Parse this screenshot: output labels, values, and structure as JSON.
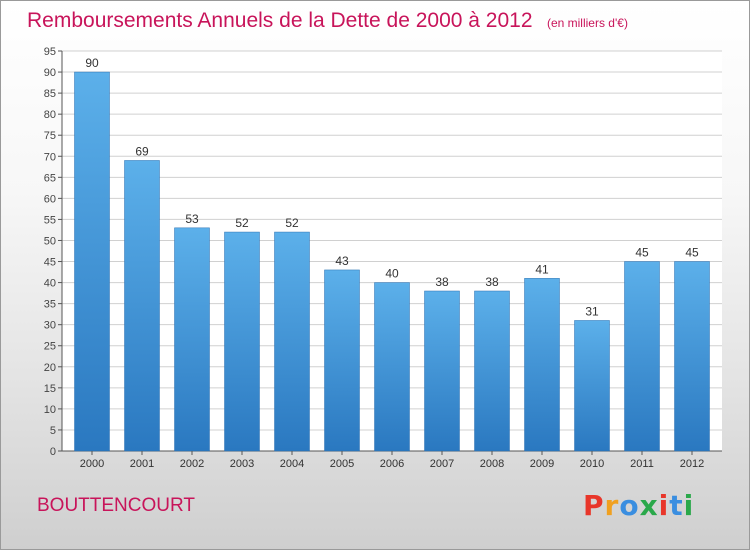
{
  "chart_data": {
    "type": "bar",
    "title": "Remboursements Annuels de la Dette de 2000 à 2012",
    "subtitle": "(en milliers d'€)",
    "categories": [
      "2000",
      "2001",
      "2002",
      "2003",
      "2004",
      "2005",
      "2006",
      "2007",
      "2008",
      "2009",
      "2010",
      "2011",
      "2012"
    ],
    "values": [
      90,
      69,
      53,
      52,
      52,
      43,
      40,
      38,
      38,
      41,
      31,
      45,
      45
    ],
    "ylim": [
      0,
      95
    ],
    "ytick_step": 5,
    "grid": true,
    "bar_color": "#4a9fe0",
    "bar_color_dark": "#2a78c0"
  },
  "footer": {
    "commune": "BOUTTENCOURT",
    "brand": "Proxiti",
    "brand_colors": [
      "#e8362a",
      "#f0a020",
      "#3a8ee0",
      "#2aa84a",
      "#e8362a",
      "#3a8ee0",
      "#2aa84a"
    ]
  },
  "colors": {
    "title": "#c8145a"
  }
}
